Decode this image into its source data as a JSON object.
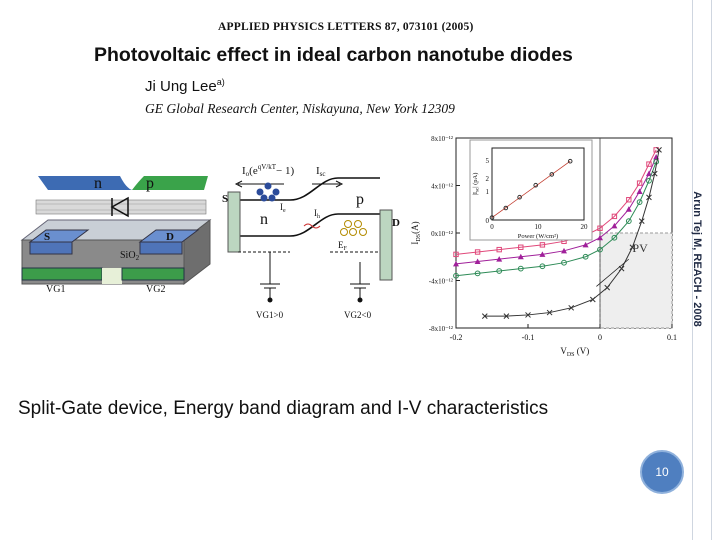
{
  "side_label": "Arun Tej M, REACH - 2008",
  "paper": {
    "journal_line": "APPLIED PHYSICS LETTERS 87, 073101 (2005)",
    "title": "Photovoltaic effect in ideal carbon nanotube diodes",
    "author": "Ji Ung Lee",
    "author_mark": "a)",
    "affiliation": "GE Global Research Center, Niskayuna, New York 12309"
  },
  "device_labels": {
    "n": "n",
    "p": "p",
    "s": "S",
    "d": "D",
    "sio2": "SiO",
    "sio2_sub": "2",
    "vg1": "VG1",
    "vg2": "VG2"
  },
  "band_labels": {
    "io": "I",
    "io_expr": "(e",
    "io_exp": "qV/kT",
    "io_tail": "− 1)",
    "isc": "I",
    "isc_sub": "sc",
    "ih": "I",
    "ih_sub": "h",
    "ie": "I",
    "ie_sub": "e",
    "s": "S",
    "d": "D",
    "n": "n",
    "p": "p",
    "ef": "E",
    "ef_sub": "F",
    "vg1": "VG1>0",
    "vg2": "VG2<0"
  },
  "chart_data": {
    "type": "scatter",
    "xlabel": "V",
    "xlabel_sub": "DS",
    "xlabel_unit": "(V)",
    "ylabel": "I",
    "ylabel_sub": "DS",
    "ylabel_unit": "(A)",
    "xlim": [
      -0.2,
      0.1
    ],
    "ylim": [
      -8e-12,
      8e-12
    ],
    "x_ticks": [
      "-0.2",
      "-0.1",
      "0",
      "0.1"
    ],
    "y_ticks": [
      "8x10⁻¹²",
      "4x10⁻¹²",
      "0x10⁻¹²",
      "-4x10⁻¹²",
      "-8x10⁻¹²"
    ],
    "pv_label": "PV",
    "series": [
      {
        "color": "#e0487a",
        "marker": "square",
        "x": [
          -0.2,
          -0.17,
          -0.14,
          -0.11,
          -0.08,
          -0.05,
          -0.02,
          0.0,
          0.02,
          0.04,
          0.055,
          0.068,
          0.078
        ],
        "y": [
          -1.8e-12,
          -1.6e-12,
          -1.4e-12,
          -1.2e-12,
          -1e-12,
          -7e-13,
          -2e-13,
          4e-13,
          1.4e-12,
          2.8e-12,
          4.2e-12,
          5.8e-12,
          7e-12
        ]
      },
      {
        "color": "#a0209a",
        "marker": "triangle",
        "x": [
          -0.2,
          -0.17,
          -0.14,
          -0.11,
          -0.08,
          -0.05,
          -0.02,
          0.0,
          0.02,
          0.04,
          0.055,
          0.068,
          0.078
        ],
        "y": [
          -2.6e-12,
          -2.4e-12,
          -2.2e-12,
          -2e-12,
          -1.8e-12,
          -1.5e-12,
          -1e-12,
          -4e-13,
          6e-13,
          2e-12,
          3.5e-12,
          5e-12,
          6.4e-12
        ]
      },
      {
        "color": "#2e8b57",
        "marker": "circle",
        "x": [
          -0.2,
          -0.17,
          -0.14,
          -0.11,
          -0.08,
          -0.05,
          -0.02,
          0.0,
          0.02,
          0.04,
          0.055,
          0.068,
          0.078
        ],
        "y": [
          -3.6e-12,
          -3.4e-12,
          -3.2e-12,
          -3e-12,
          -2.8e-12,
          -2.5e-12,
          -2e-12,
          -1.4e-12,
          -4e-13,
          1e-12,
          2.6e-12,
          4.4e-12,
          6e-12
        ]
      },
      {
        "color": "#333333",
        "marker": "cross",
        "x": [
          -0.16,
          -0.13,
          -0.1,
          -0.07,
          -0.04,
          -0.01,
          0.01,
          0.03,
          0.045,
          0.058,
          0.068,
          0.076,
          0.082
        ],
        "y": [
          -7e-12,
          -7e-12,
          -6.9e-12,
          -6.7e-12,
          -6.3e-12,
          -5.6e-12,
          -4.6e-12,
          -3e-12,
          -1.2e-12,
          1e-12,
          3e-12,
          5e-12,
          7e-12
        ]
      }
    ],
    "inset": {
      "xlabel": "Power (W/cm²)",
      "ylabel": "|I",
      "ylabel_sub": "sc",
      "ylabel_unit": "| (pA)",
      "xlim": [
        0,
        20
      ],
      "ylim": [
        0,
        6
      ],
      "x_ticks": [
        "0",
        "10",
        "20"
      ],
      "y_ticks": [
        "5",
        "2",
        "1",
        "0"
      ],
      "x": [
        0,
        3,
        6,
        9.5,
        13,
        17
      ],
      "y": [
        0.2,
        1.0,
        1.9,
        2.9,
        3.8,
        4.9
      ]
    }
  },
  "caption": "Split-Gate device, Energy band diagram and I-V characteristics",
  "page_number": "10"
}
